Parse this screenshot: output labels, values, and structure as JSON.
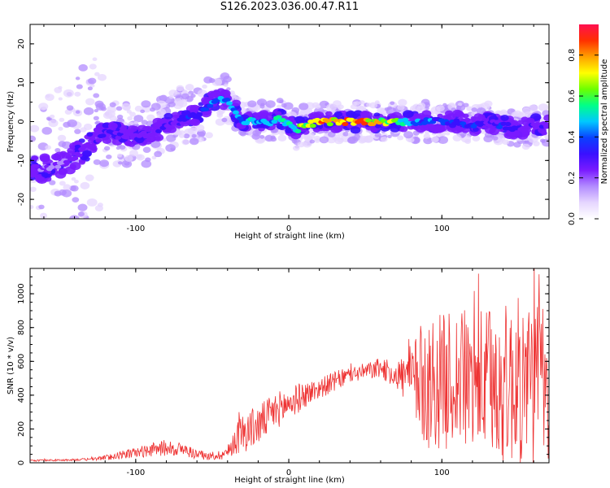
{
  "title": "S126.2023.036.00.47.R11",
  "colors": {
    "snr_line": "#ee3333",
    "colormap": [
      "#ffffff",
      "#e6d6ff",
      "#b38cff",
      "#7a1bff",
      "#3a10ff",
      "#0a40ff",
      "#00c8ff",
      "#00ff88",
      "#6cff00",
      "#ffff00",
      "#ffa000",
      "#ff3000",
      "#ff1050"
    ]
  },
  "chart_data": [
    {
      "type": "heatmap",
      "title": "",
      "xlabel": "Height of straight line (km)",
      "ylabel": "Frequency (Hz)",
      "xlim": [
        -169,
        170
      ],
      "ylim": [
        -25,
        25
      ],
      "xticks": [
        "-100",
        "0",
        "100"
      ],
      "xtick_values": [
        -100,
        0,
        100
      ],
      "yticks": [
        "20",
        "10",
        "0",
        "-10",
        "-20"
      ],
      "ytick_values": [
        20,
        10,
        0,
        -10,
        -20
      ],
      "ridge": {
        "name": "",
        "x": [
          -160,
          -150,
          -140,
          -130,
          -120,
          -110,
          -100,
          -90,
          -80,
          -70,
          -60,
          -50,
          -45,
          -40,
          -35,
          -30,
          -20,
          -10,
          -5,
          0,
          5,
          10,
          20,
          30,
          40,
          50,
          60,
          70,
          80,
          90,
          100,
          110,
          120,
          130,
          140,
          150,
          160,
          170
        ],
        "y": [
          -12,
          -11,
          -9,
          -6,
          -3,
          -3,
          -4,
          -3,
          -1,
          1,
          2,
          5,
          6,
          5,
          3,
          0,
          0,
          0,
          1,
          -1,
          -2,
          -1,
          0,
          0,
          0,
          0,
          0,
          0,
          0,
          0,
          0,
          0,
          -1,
          0,
          -1,
          -2,
          -1,
          -1
        ],
        "amplitude": [
          0.25,
          0.2,
          0.25,
          0.3,
          0.35,
          0.3,
          0.3,
          0.3,
          0.3,
          0.35,
          0.4,
          0.5,
          0.55,
          0.5,
          0.5,
          0.55,
          0.55,
          0.6,
          0.6,
          0.55,
          0.65,
          0.8,
          0.9,
          0.85,
          0.95,
          0.9,
          0.8,
          0.7,
          0.55,
          0.45,
          0.45,
          0.4,
          0.4,
          0.35,
          0.4,
          0.35,
          0.3,
          0.3
        ]
      },
      "colorbar": {
        "label": "Normalized spectral amplitude",
        "range": [
          0.0,
          0.95
        ],
        "ticks": [
          "0.0",
          "0.2",
          "0.4",
          "0.6",
          "0.8"
        ],
        "tick_values": [
          0.0,
          0.2,
          0.4,
          0.6,
          0.8
        ]
      }
    },
    {
      "type": "line",
      "title": "",
      "xlabel": "Height of straight line (km)",
      "ylabel": "SNR (10 * v/v)",
      "xlim": [
        -169,
        170
      ],
      "ylim": [
        0,
        1150
      ],
      "xticks": [
        "-100",
        "0",
        "100"
      ],
      "xtick_values": [
        -100,
        0,
        100
      ],
      "yticks": [
        "0",
        "200",
        "400",
        "600",
        "800",
        "1000"
      ],
      "ytick_values": [
        0,
        200,
        400,
        600,
        800,
        1000
      ],
      "series": [
        {
          "name": "",
          "x": [
            -169,
            -160,
            -150,
            -140,
            -130,
            -120,
            -110,
            -100,
            -90,
            -80,
            -70,
            -60,
            -50,
            -40,
            -35,
            -30,
            -25,
            -20,
            -10,
            0,
            10,
            20,
            30,
            40,
            50,
            60,
            70,
            80,
            85,
            90,
            100,
            110,
            120,
            130,
            140,
            150,
            160,
            170
          ],
          "baseline": [
            12,
            15,
            15,
            18,
            20,
            30,
            45,
            60,
            75,
            90,
            80,
            50,
            35,
            60,
            140,
            180,
            200,
            220,
            300,
            350,
            400,
            440,
            480,
            520,
            540,
            560,
            520,
            500,
            480,
            470,
            480,
            500,
            480,
            470,
            460,
            480,
            460,
            440
          ],
          "spread": [
            5,
            5,
            6,
            6,
            8,
            15,
            25,
            30,
            40,
            50,
            40,
            30,
            20,
            40,
            90,
            120,
            120,
            120,
            110,
            100,
            80,
            60,
            60,
            50,
            50,
            60,
            80,
            200,
            320,
            400,
            400,
            420,
            420,
            450,
            480,
            500,
            520,
            480
          ]
        }
      ]
    }
  ]
}
